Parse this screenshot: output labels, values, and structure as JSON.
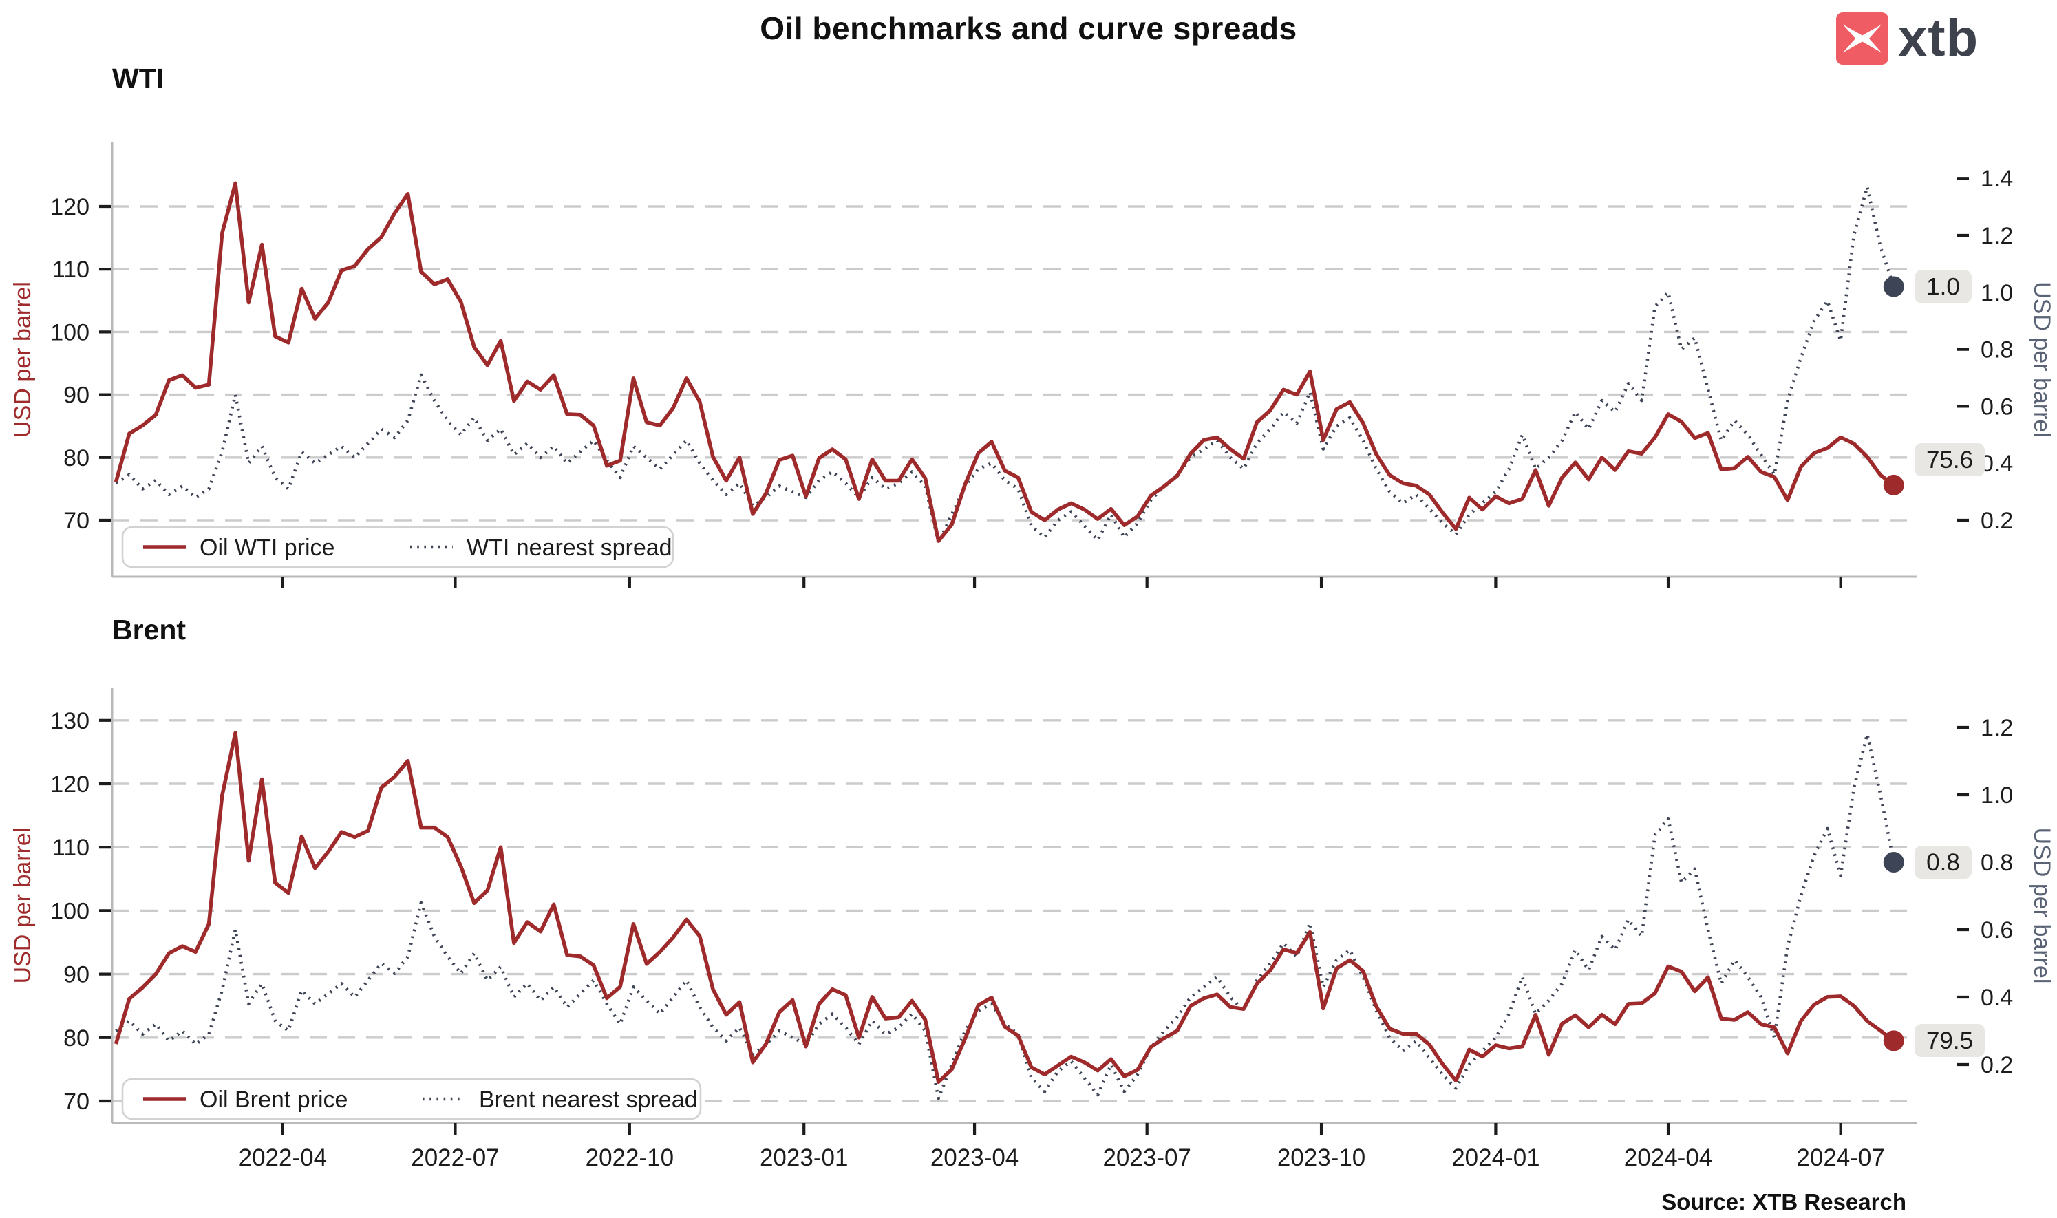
{
  "title": "Oil benchmarks and curve spreads",
  "logo": {
    "text": "xtb",
    "mark_color": "#f05c63",
    "text_color": "#3e424d"
  },
  "source": "Source: XTB Research",
  "colors": {
    "price": "#9e2a2b",
    "spread": "#3d4455",
    "grid": "#cbcbcb",
    "spine": "#b9b9b9",
    "tick_text": "#1c1c1c",
    "left_axis_label": "#9e2a2b",
    "right_axis_label": "#5a6375",
    "badge_bg": "#e8e7e3",
    "legend_border": "#d2d2d2"
  },
  "x_ticks": [
    "2022-04",
    "2022-07",
    "2022-10",
    "2023-01",
    "2023-04",
    "2023-07",
    "2023-10",
    "2024-01",
    "2024-04",
    "2024-07"
  ],
  "chart_data": [
    {
      "type": "line",
      "title": "WTI",
      "ylabel_left": "USD per barrel",
      "ylabel_right": "USD per barrel",
      "left_ticks": [
        70,
        80,
        90,
        100,
        110,
        120
      ],
      "right_ticks": [
        0.2,
        0.4,
        0.6,
        0.8,
        1.0,
        1.2,
        1.4
      ],
      "ylim_left": [
        64,
        127
      ],
      "ylim_right": [
        0.08,
        1.45
      ],
      "grid": true,
      "legend_position": "lower-left",
      "x_start": "2022-01-03",
      "x_step_days": 7,
      "end_labels": {
        "price": "75.6",
        "spread": "1.0"
      },
      "series": [
        {
          "name": "WTI nearest spread",
          "axis": "right",
          "style": "dotted",
          "values": [
            0.33,
            0.36,
            0.31,
            0.34,
            0.29,
            0.32,
            0.28,
            0.31,
            0.44,
            0.64,
            0.4,
            0.46,
            0.35,
            0.31,
            0.44,
            0.4,
            0.43,
            0.46,
            0.42,
            0.47,
            0.52,
            0.49,
            0.55,
            0.71,
            0.62,
            0.55,
            0.5,
            0.56,
            0.48,
            0.52,
            0.43,
            0.47,
            0.42,
            0.46,
            0.4,
            0.44,
            0.48,
            0.41,
            0.35,
            0.46,
            0.42,
            0.38,
            0.43,
            0.48,
            0.4,
            0.34,
            0.29,
            0.33,
            0.25,
            0.28,
            0.32,
            0.3,
            0.28,
            0.34,
            0.37,
            0.33,
            0.28,
            0.35,
            0.31,
            0.33,
            0.37,
            0.32,
            0.12,
            0.22,
            0.32,
            0.38,
            0.4,
            0.34,
            0.31,
            0.18,
            0.14,
            0.2,
            0.23,
            0.18,
            0.13,
            0.22,
            0.14,
            0.19,
            0.27,
            0.32,
            0.36,
            0.42,
            0.45,
            0.48,
            0.42,
            0.38,
            0.47,
            0.52,
            0.58,
            0.54,
            0.65,
            0.45,
            0.53,
            0.56,
            0.48,
            0.38,
            0.3,
            0.26,
            0.29,
            0.24,
            0.19,
            0.15,
            0.22,
            0.26,
            0.3,
            0.38,
            0.5,
            0.38,
            0.42,
            0.48,
            0.58,
            0.52,
            0.62,
            0.58,
            0.68,
            0.62,
            0.95,
            1.0,
            0.8,
            0.84,
            0.66,
            0.48,
            0.55,
            0.5,
            0.43,
            0.36,
            0.62,
            0.77,
            0.9,
            0.97,
            0.83,
            1.2,
            1.37,
            1.16,
            1.02
          ]
        },
        {
          "name": "Oil WTI price",
          "axis": "left",
          "style": "solid",
          "values": [
            76.1,
            83.8,
            85.1,
            86.8,
            92.3,
            93.1,
            91.1,
            91.6,
            115.7,
            123.7,
            104.7,
            113.9,
            99.3,
            98.3,
            106.9,
            102.1,
            104.7,
            109.8,
            110.5,
            113.2,
            115.1,
            118.9,
            122.0,
            109.6,
            107.6,
            108.4,
            104.8,
            97.6,
            94.7,
            98.6,
            89.0,
            92.1,
            90.8,
            93.1,
            86.9,
            86.8,
            85.1,
            78.7,
            79.5,
            92.6,
            85.6,
            85.1,
            87.9,
            92.6,
            88.9,
            80.1,
            76.3,
            80.0,
            71.0,
            74.3,
            79.6,
            80.3,
            73.8,
            79.9,
            81.3,
            79.7,
            73.4,
            79.7,
            76.3,
            76.3,
            79.7,
            76.7,
            66.7,
            69.3,
            75.7,
            80.7,
            82.5,
            77.9,
            76.8,
            71.3,
            70.0,
            71.7,
            72.7,
            71.7,
            70.2,
            71.8,
            69.2,
            70.6,
            73.9,
            75.4,
            77.1,
            80.6,
            82.8,
            83.2,
            81.3,
            79.8,
            85.6,
            87.5,
            90.8,
            90.0,
            93.7,
            82.8,
            87.7,
            88.8,
            85.5,
            80.5,
            77.2,
            75.9,
            75.5,
            74.1,
            71.2,
            68.6,
            73.6,
            71.7,
            73.8,
            72.7,
            73.4,
            78.0,
            72.3,
            76.8,
            79.2,
            76.5,
            80.0,
            78.0,
            81.0,
            80.6,
            83.2,
            86.9,
            85.7,
            83.1,
            83.9,
            78.1,
            78.3,
            80.1,
            77.7,
            76.9,
            73.2,
            78.5,
            80.7,
            81.5,
            83.2,
            82.2,
            80.1,
            77.2,
            75.6
          ]
        }
      ]
    },
    {
      "type": "line",
      "title": "Brent",
      "ylabel_left": "USD per barrel",
      "ylabel_right": "USD per barrel",
      "left_ticks": [
        70,
        80,
        90,
        100,
        110,
        120,
        130
      ],
      "right_ticks": [
        0.2,
        0.4,
        0.6,
        0.8,
        1.0,
        1.2
      ],
      "ylim_left": [
        66,
        133
      ],
      "ylim_right": [
        0.08,
        1.3
      ],
      "grid": true,
      "legend_position": "lower-left",
      "x_start": "2022-01-03",
      "x_step_days": 7,
      "end_labels": {
        "price": "79.5",
        "spread": "0.8"
      },
      "series": [
        {
          "name": "Brent nearest spread",
          "axis": "right",
          "style": "dotted",
          "values": [
            0.3,
            0.33,
            0.29,
            0.32,
            0.27,
            0.3,
            0.26,
            0.29,
            0.42,
            0.6,
            0.38,
            0.44,
            0.33,
            0.3,
            0.42,
            0.38,
            0.41,
            0.44,
            0.4,
            0.45,
            0.5,
            0.47,
            0.52,
            0.68,
            0.58,
            0.52,
            0.47,
            0.53,
            0.45,
            0.49,
            0.4,
            0.44,
            0.39,
            0.43,
            0.37,
            0.41,
            0.45,
            0.38,
            0.32,
            0.43,
            0.39,
            0.35,
            0.4,
            0.45,
            0.37,
            0.31,
            0.27,
            0.31,
            0.23,
            0.26,
            0.3,
            0.28,
            0.26,
            0.32,
            0.35,
            0.31,
            0.26,
            0.33,
            0.29,
            0.31,
            0.35,
            0.3,
            0.1,
            0.2,
            0.3,
            0.36,
            0.38,
            0.32,
            0.29,
            0.16,
            0.12,
            0.18,
            0.21,
            0.16,
            0.11,
            0.2,
            0.12,
            0.17,
            0.25,
            0.3,
            0.34,
            0.4,
            0.43,
            0.46,
            0.4,
            0.36,
            0.45,
            0.5,
            0.56,
            0.52,
            0.62,
            0.43,
            0.51,
            0.54,
            0.46,
            0.36,
            0.28,
            0.24,
            0.27,
            0.22,
            0.17,
            0.13,
            0.2,
            0.24,
            0.28,
            0.35,
            0.46,
            0.35,
            0.39,
            0.44,
            0.54,
            0.48,
            0.58,
            0.54,
            0.63,
            0.58,
            0.88,
            0.93,
            0.74,
            0.78,
            0.6,
            0.44,
            0.51,
            0.46,
            0.4,
            0.28,
            0.55,
            0.7,
            0.82,
            0.9,
            0.76,
            1.02,
            1.18,
            1.0,
            0.8
          ]
        },
        {
          "name": "Oil Brent price",
          "axis": "left",
          "style": "solid",
          "values": [
            79.0,
            86.1,
            87.9,
            90.0,
            93.3,
            94.4,
            93.5,
            97.9,
            118.1,
            128.0,
            107.9,
            120.7,
            104.4,
            102.8,
            111.7,
            106.7,
            109.3,
            112.4,
            111.6,
            112.6,
            119.4,
            121.1,
            123.6,
            113.1,
            113.1,
            111.6,
            107.0,
            101.2,
            103.2,
            110.0,
            94.9,
            98.2,
            96.7,
            101.0,
            93.0,
            92.8,
            91.4,
            86.2,
            88.0,
            97.9,
            91.6,
            93.5,
            95.8,
            98.6,
            96.0,
            87.6,
            83.6,
            85.6,
            76.1,
            79.0,
            84.0,
            85.9,
            78.6,
            85.3,
            87.6,
            86.7,
            80.0,
            86.4,
            83.0,
            83.2,
            85.8,
            82.8,
            73.0,
            75.0,
            79.8,
            85.1,
            86.3,
            81.7,
            80.3,
            75.3,
            74.2,
            75.6,
            77.0,
            76.1,
            74.8,
            76.6,
            73.9,
            74.9,
            78.5,
            79.9,
            81.1,
            85.0,
            86.2,
            86.8,
            84.8,
            84.5,
            88.5,
            90.6,
            93.9,
            93.3,
            96.6,
            84.6,
            90.9,
            92.2,
            90.5,
            84.9,
            81.4,
            80.6,
            80.6,
            78.9,
            75.8,
            73.2,
            78.1,
            77.0,
            78.8,
            78.3,
            78.6,
            83.6,
            77.3,
            82.2,
            83.5,
            81.6,
            83.6,
            82.1,
            85.3,
            85.4,
            87.0,
            91.2,
            90.4,
            87.3,
            89.5,
            83.0,
            82.8,
            84.0,
            82.1,
            81.6,
            77.5,
            82.6,
            85.2,
            86.4,
            86.5,
            85.0,
            82.6,
            81.1,
            79.5
          ]
        }
      ]
    }
  ]
}
